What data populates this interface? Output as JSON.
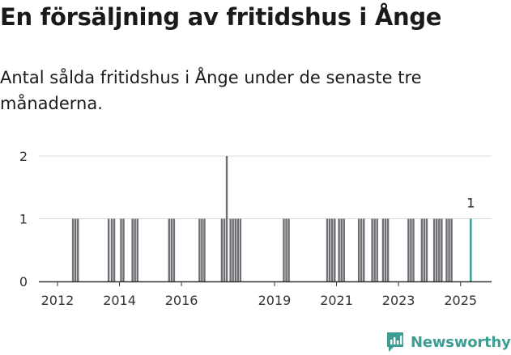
{
  "header": {
    "title": "En försäljning av fritidshus i Ånge",
    "subtitle": "Antal sålda fritidshus i Ånge under de senaste tre månaderna."
  },
  "brand": {
    "name": "Newsworthy"
  },
  "colors": {
    "bar": "#6e6e74",
    "highlight": "#2a9d8f",
    "grid": "#d9d9d9",
    "axis": "#333333",
    "brand": "#3c9e92"
  },
  "chart_data": {
    "type": "bar",
    "title": "En försäljning av fritidshus i Ånge",
    "subtitle": "Antal sålda fritidshus i Ånge under de senaste tre månaderna.",
    "xlabel": "",
    "ylabel": "",
    "xlim": [
      2011.4,
      2026.0
    ],
    "ylim": [
      0,
      2
    ],
    "yticks": [
      0,
      1,
      2
    ],
    "xticks": [
      2012,
      2014,
      2016,
      2019,
      2021,
      2023,
      2025
    ],
    "grid": true,
    "series": [
      {
        "name": "Antal sålda fritidshus",
        "points": [
          {
            "t": 2012.5,
            "v": 1
          },
          {
            "t": 2012.58,
            "v": 1
          },
          {
            "t": 2012.66,
            "v": 1
          },
          {
            "t": 2013.65,
            "v": 1
          },
          {
            "t": 2013.75,
            "v": 1
          },
          {
            "t": 2013.83,
            "v": 1
          },
          {
            "t": 2014.05,
            "v": 1
          },
          {
            "t": 2014.13,
            "v": 1
          },
          {
            "t": 2014.42,
            "v": 1
          },
          {
            "t": 2014.5,
            "v": 1
          },
          {
            "t": 2014.58,
            "v": 1
          },
          {
            "t": 2015.6,
            "v": 1
          },
          {
            "t": 2015.68,
            "v": 1
          },
          {
            "t": 2015.76,
            "v": 1
          },
          {
            "t": 2016.58,
            "v": 1
          },
          {
            "t": 2016.66,
            "v": 1
          },
          {
            "t": 2016.74,
            "v": 1
          },
          {
            "t": 2017.3,
            "v": 1
          },
          {
            "t": 2017.38,
            "v": 1
          },
          {
            "t": 2017.46,
            "v": 2
          },
          {
            "t": 2017.58,
            "v": 1
          },
          {
            "t": 2017.66,
            "v": 1
          },
          {
            "t": 2017.74,
            "v": 1
          },
          {
            "t": 2017.82,
            "v": 1
          },
          {
            "t": 2017.9,
            "v": 1
          },
          {
            "t": 2019.3,
            "v": 1
          },
          {
            "t": 2019.38,
            "v": 1
          },
          {
            "t": 2019.46,
            "v": 1
          },
          {
            "t": 2020.7,
            "v": 1
          },
          {
            "t": 2020.78,
            "v": 1
          },
          {
            "t": 2020.86,
            "v": 1
          },
          {
            "t": 2020.94,
            "v": 1
          },
          {
            "t": 2021.08,
            "v": 1
          },
          {
            "t": 2021.16,
            "v": 1
          },
          {
            "t": 2021.24,
            "v": 1
          },
          {
            "t": 2021.72,
            "v": 1
          },
          {
            "t": 2021.8,
            "v": 1
          },
          {
            "t": 2021.88,
            "v": 1
          },
          {
            "t": 2022.15,
            "v": 1
          },
          {
            "t": 2022.23,
            "v": 1
          },
          {
            "t": 2022.31,
            "v": 1
          },
          {
            "t": 2022.5,
            "v": 1
          },
          {
            "t": 2022.58,
            "v": 1
          },
          {
            "t": 2022.66,
            "v": 1
          },
          {
            "t": 2023.32,
            "v": 1
          },
          {
            "t": 2023.4,
            "v": 1
          },
          {
            "t": 2023.48,
            "v": 1
          },
          {
            "t": 2023.75,
            "v": 1
          },
          {
            "t": 2023.83,
            "v": 1
          },
          {
            "t": 2023.91,
            "v": 1
          },
          {
            "t": 2024.15,
            "v": 1
          },
          {
            "t": 2024.23,
            "v": 1
          },
          {
            "t": 2024.31,
            "v": 1
          },
          {
            "t": 2024.39,
            "v": 1
          },
          {
            "t": 2024.55,
            "v": 1
          },
          {
            "t": 2024.63,
            "v": 1
          },
          {
            "t": 2024.71,
            "v": 1
          }
        ]
      },
      {
        "name": "Senaste tre månaderna",
        "points": [
          {
            "t": 2025.33,
            "v": 1
          }
        ],
        "data_label": "1"
      }
    ]
  }
}
